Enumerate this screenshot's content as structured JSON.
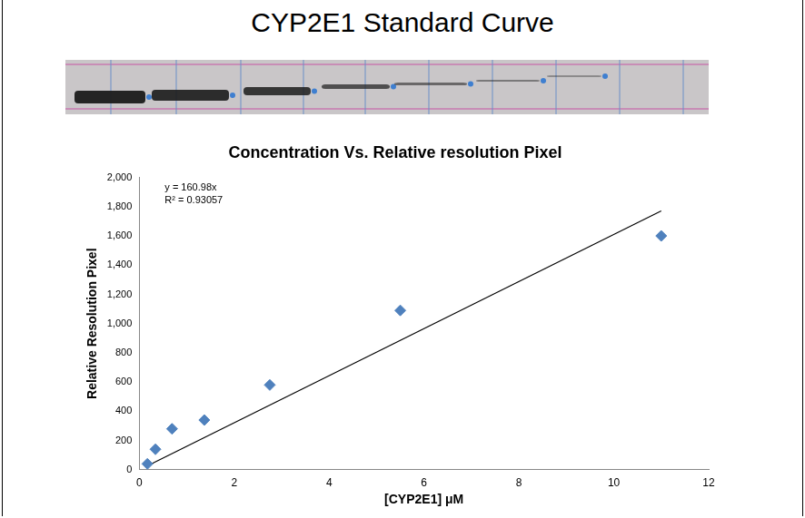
{
  "page_title": "CYP2E1 Standard Curve",
  "chart_data": {
    "type": "scatter",
    "title": "Concentration Vs. Relative resolution Pixel",
    "x_label": "[CYP2E1] μM",
    "y_label": "Relative Resolution Pixel",
    "annotations": [
      "y = 160.98x",
      "R² = 0.93057"
    ],
    "xlim": [
      0,
      12
    ],
    "xticks": [
      0,
      2,
      4,
      6,
      8,
      10,
      12
    ],
    "ylim": [
      0,
      2000
    ],
    "yticks": [
      0,
      200,
      400,
      600,
      800,
      1000,
      1200,
      1400,
      1600,
      1800,
      2000
    ],
    "grid": false,
    "series": [
      {
        "type": "scatter",
        "color": "#4f81bd",
        "marker": "diamond",
        "x": [
          0.17,
          0.34,
          0.69,
          1.37,
          2.75,
          5.5,
          11
        ],
        "values": [
          40,
          140,
          280,
          340,
          580,
          1090,
          1600
        ]
      },
      {
        "type": "line",
        "color": "#000000",
        "line_style": "solid",
        "x": [
          0.17,
          11
        ],
        "values": [
          27,
          1771
        ]
      }
    ]
  }
}
